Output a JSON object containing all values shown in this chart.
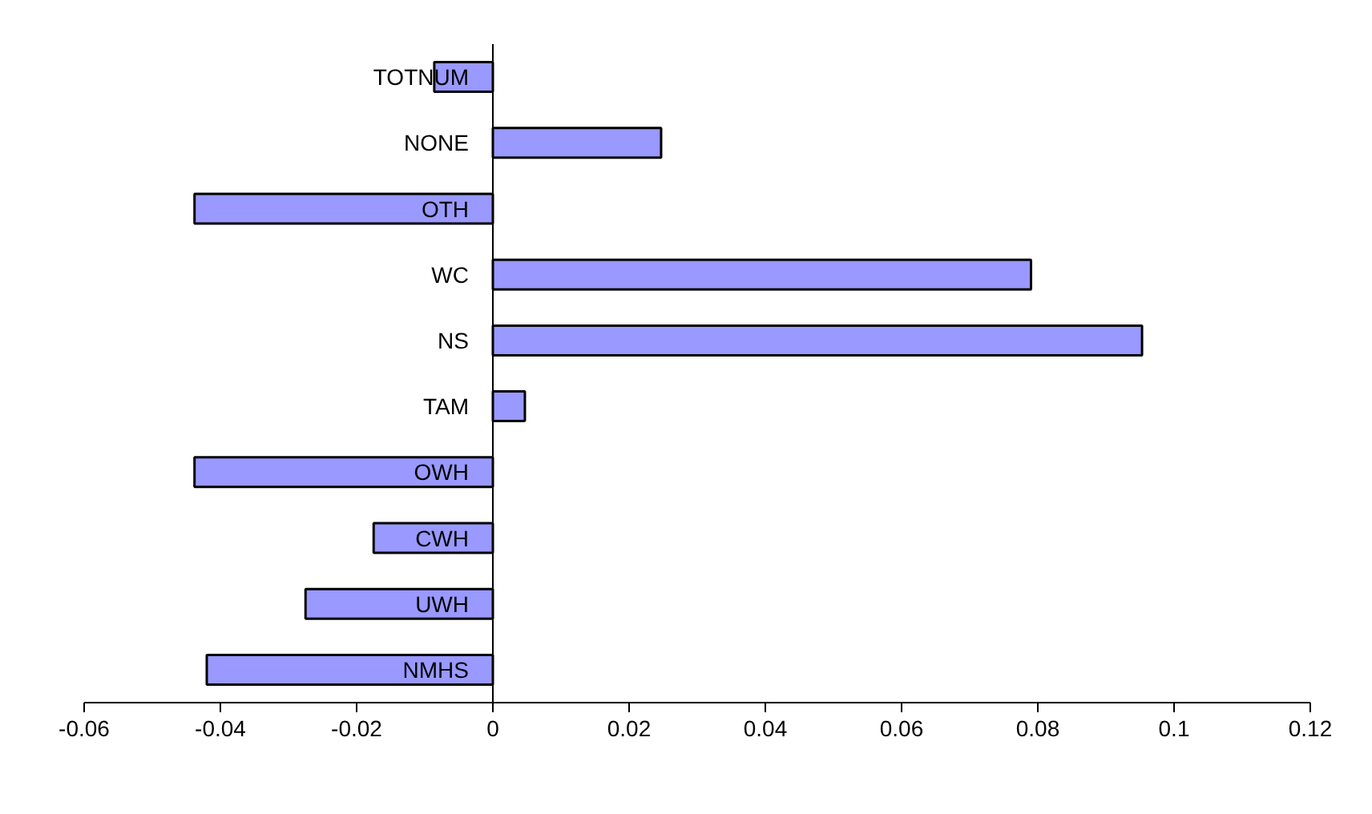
{
  "chart_data": {
    "type": "bar",
    "orientation": "horizontal",
    "categories": [
      "TOTNUM",
      "NONE",
      "OTH",
      "WC",
      "NS",
      "TAM",
      "OWH",
      "CWH",
      "UWH",
      "NMHS"
    ],
    "values": [
      -0.0086,
      0.0247,
      -0.0438,
      0.079,
      0.0953,
      0.0047,
      -0.0438,
      -0.0175,
      -0.0275,
      -0.042
    ],
    "color": "#9999ff",
    "xlim": [
      -0.06,
      0.12
    ],
    "xticks": [
      -0.06,
      -0.04,
      -0.02,
      0,
      0.02,
      0.04,
      0.06,
      0.08,
      0.1,
      0.12
    ],
    "grid": false
  }
}
